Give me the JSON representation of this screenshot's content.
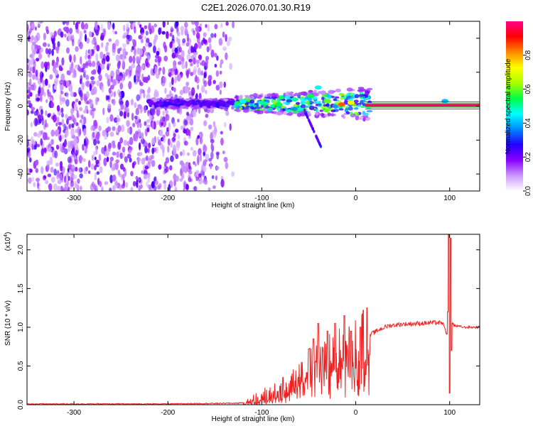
{
  "title": "C2E1.2026.070.01.30.R19",
  "chart_data": [
    {
      "type": "heatmap",
      "name": "spectrogram",
      "xlabel": "Height of straight line (km)",
      "ylabel": "Frequency (Hz)",
      "xlim": [
        -350,
        132
      ],
      "ylim": [
        -50,
        50
      ],
      "x_ticks": [
        -300,
        -200,
        -100,
        0,
        100
      ],
      "y_ticks": [
        -40,
        -20,
        0,
        20,
        40
      ],
      "colorbar": {
        "label": "Normalized spectral amplitude",
        "range": [
          0,
          1
        ],
        "ticks": [
          "0.0",
          "0.2",
          "0.4",
          "0.6",
          "0.8"
        ],
        "colors": [
          "#ffffff",
          "#cc99ff",
          "#8800ff",
          "#2200ff",
          "#0088ff",
          "#00ffff",
          "#00ff44",
          "#aaff00",
          "#ffff00",
          "#ff8800",
          "#ff0000",
          "#ff0088"
        ]
      },
      "noise_region_x": [
        -350,
        -130
      ],
      "tone_line": {
        "x": [
          10,
          132
        ],
        "freq": 0.5
      },
      "features": [
        {
          "x": -120,
          "freq": 3,
          "amp": 0.45
        },
        {
          "x": -100,
          "freq": 2,
          "amp": 0.5
        },
        {
          "x": -82,
          "freq": 1,
          "amp": 0.55
        },
        {
          "x": -65,
          "freq": 4,
          "amp": 0.5
        },
        {
          "x": -48,
          "freq": 6,
          "amp": 0.55
        },
        {
          "x": -40,
          "freq": 11,
          "amp": 0.45
        },
        {
          "x": -30,
          "freq": 3,
          "amp": 0.6
        },
        {
          "x": -15,
          "freq": 1,
          "amp": 0.85
        },
        {
          "x": -5,
          "freq": 2,
          "amp": 0.7
        },
        {
          "x": 95,
          "freq": 3,
          "amp": 0.4
        }
      ]
    },
    {
      "type": "line",
      "name": "snr",
      "xlabel": "Height of straight line (km)",
      "ylabel": "SNR (10 * v/v)",
      "y_multiplier": "(x10",
      "y_multiplier_exp": "4",
      "xlim": [
        -350,
        132
      ],
      "ylim": [
        0,
        2.2
      ],
      "x_ticks": [
        -300,
        -200,
        -100,
        0,
        100
      ],
      "y_ticks": [
        "0.0",
        "0.5",
        "1.0",
        "1.5",
        "2.0"
      ],
      "color": "#ee2222",
      "envelope": [
        [
          -350,
          0.01
        ],
        [
          -200,
          0.01
        ],
        [
          -125,
          0.02
        ],
        [
          -110,
          0.05
        ],
        [
          -100,
          0.1
        ],
        [
          -85,
          0.15
        ],
        [
          -70,
          0.25
        ],
        [
          -55,
          0.45
        ],
        [
          -45,
          0.55
        ],
        [
          -35,
          0.6
        ],
        [
          -25,
          0.65
        ],
        [
          -15,
          0.7
        ],
        [
          -5,
          0.72
        ],
        [
          5,
          0.8
        ],
        [
          15,
          0.9
        ],
        [
          25,
          0.97
        ],
        [
          35,
          1.02
        ],
        [
          50,
          1.04
        ],
        [
          70,
          1.05
        ],
        [
          85,
          1.06
        ],
        [
          93,
          1.05
        ],
        [
          97,
          0.9
        ],
        [
          100,
          1.1
        ],
        [
          105,
          1.02
        ],
        [
          115,
          1.0
        ],
        [
          132,
          1.0
        ]
      ],
      "spikes": [
        [
          -50,
          0.72
        ],
        [
          -45,
          0.85
        ],
        [
          -40,
          1.05
        ],
        [
          -30,
          0.95
        ],
        [
          -22,
          1.05
        ],
        [
          -12,
          1.15
        ],
        [
          -5,
          0.95
        ],
        [
          5,
          1.0
        ],
        [
          8,
          1.22
        ],
        [
          12,
          1.25
        ],
        [
          98,
          1.2
        ],
        [
          99,
          2.2
        ],
        [
          100,
          0.15
        ],
        [
          101,
          2.15
        ],
        [
          102,
          0.7
        ]
      ]
    }
  ]
}
